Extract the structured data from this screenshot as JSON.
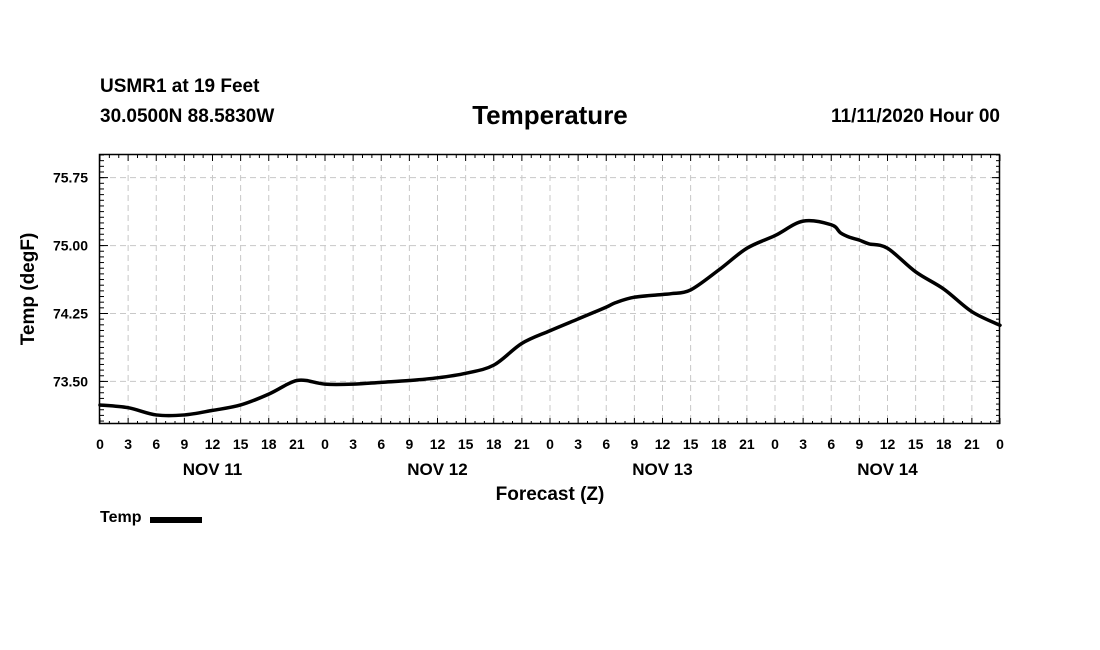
{
  "header": {
    "station": "USMR1 at 19 Feet",
    "coords": "30.0500N 88.5830W",
    "title": "Temperature",
    "runtime": "11/11/2020 Hour 00"
  },
  "colors": {
    "line": "#000000",
    "grid": "#c8c8c8",
    "axis": "#000000"
  },
  "chart_data": {
    "type": "line",
    "title": "Temperature",
    "xlabel": "Forecast (Z)",
    "ylabel": "Temp (degF)",
    "x_unit": "forecast hour",
    "xlim": [
      0,
      96
    ],
    "ylim": [
      73.03,
      76.0
    ],
    "yticks": [
      73.5,
      74.25,
      75.0,
      75.75
    ],
    "ytick_labels": [
      "73.50",
      "74.25",
      "75.00",
      "75.75"
    ],
    "xticks": [
      0,
      3,
      6,
      9,
      12,
      15,
      18,
      21,
      24,
      27,
      30,
      33,
      36,
      39,
      42,
      45,
      48,
      51,
      54,
      57,
      60,
      63,
      66,
      69,
      72,
      75,
      78,
      81,
      84,
      87,
      90,
      93,
      96
    ],
    "xtick_labels": [
      "0",
      "3",
      "6",
      "9",
      "12",
      "15",
      "18",
      "21",
      "0",
      "3",
      "6",
      "9",
      "12",
      "15",
      "18",
      "21",
      "0",
      "3",
      "6",
      "9",
      "12",
      "15",
      "18",
      "21",
      "0",
      "3",
      "6",
      "9",
      "12",
      "15",
      "18",
      "21",
      "0"
    ],
    "day_labels": [
      {
        "hour": 12,
        "label": "NOV 11"
      },
      {
        "hour": 36,
        "label": "NOV 12"
      },
      {
        "hour": 60,
        "label": "NOV 13"
      },
      {
        "hour": 84,
        "label": "NOV 14"
      }
    ],
    "grid": true,
    "legend": "bottom-left",
    "series": [
      {
        "name": "Temp",
        "x": [
          0,
          3,
          6,
          9,
          12,
          15,
          18,
          20,
          21,
          22,
          24,
          27,
          30,
          33,
          36,
          39,
          42,
          45,
          48,
          51,
          54,
          55,
          57,
          60,
          61,
          63,
          66,
          69,
          72,
          75,
          78,
          79,
          80,
          81,
          82,
          84,
          87,
          90,
          93,
          96
        ],
        "values": [
          73.24,
          73.21,
          73.13,
          73.13,
          73.18,
          73.24,
          73.36,
          73.47,
          73.51,
          73.51,
          73.47,
          73.47,
          73.49,
          73.51,
          73.54,
          73.59,
          73.68,
          73.92,
          74.06,
          74.19,
          74.32,
          74.37,
          74.43,
          74.46,
          74.47,
          74.51,
          74.73,
          74.97,
          75.11,
          75.27,
          75.23,
          75.14,
          75.09,
          75.06,
          75.02,
          74.97,
          74.71,
          74.52,
          74.27,
          74.12
        ]
      }
    ]
  },
  "legend": {
    "label": "Temp"
  }
}
